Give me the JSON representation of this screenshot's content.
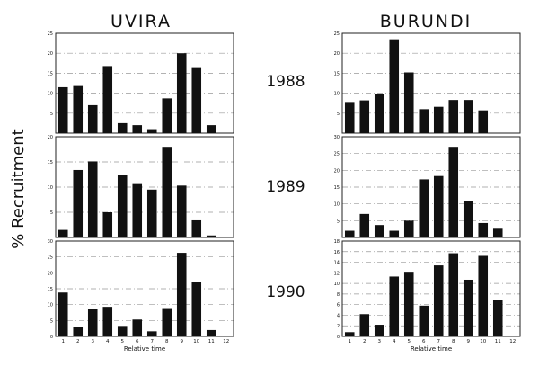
{
  "ylabel": "% Recruitment",
  "xlabel": "Relative time",
  "columns": [
    "UVIRA",
    "BURUNDI"
  ],
  "years": [
    "1988",
    "1989",
    "1990"
  ],
  "chart_data": [
    {
      "type": "bar",
      "column": "UVIRA",
      "year": "1988",
      "categories": [
        "1",
        "2",
        "3",
        "4",
        "5",
        "6",
        "7",
        "8",
        "9",
        "10",
        "11",
        "12"
      ],
      "values": [
        11.5,
        11.8,
        7,
        16.8,
        2.5,
        2,
        1,
        8.7,
        20,
        16.3,
        2,
        0
      ],
      "ylim": [
        0,
        25
      ],
      "yticks": [
        5,
        10,
        15,
        20,
        25
      ],
      "grid": true
    },
    {
      "type": "bar",
      "column": "BURUNDI",
      "year": "1988",
      "categories": [
        "1",
        "2",
        "3",
        "4",
        "5",
        "6",
        "7",
        "8",
        "9",
        "10",
        "11",
        "12"
      ],
      "values": [
        7.8,
        8.2,
        9.9,
        23.5,
        15.2,
        6,
        6.6,
        8.3,
        8.3,
        5.7,
        0,
        0
      ],
      "ylim": [
        0,
        25
      ],
      "yticks": [
        5,
        10,
        15,
        20,
        25
      ],
      "grid": true
    },
    {
      "type": "bar",
      "column": "UVIRA",
      "year": "1989",
      "categories": [
        "1",
        "2",
        "3",
        "4",
        "5",
        "6",
        "7",
        "8",
        "9",
        "10",
        "11",
        "12"
      ],
      "values": [
        1.5,
        13.4,
        15.1,
        5,
        12.5,
        10.6,
        9.5,
        18,
        10.3,
        3.4,
        0.4,
        0
      ],
      "ylim": [
        0,
        20
      ],
      "yticks": [
        5,
        10,
        15,
        20
      ],
      "grid": true
    },
    {
      "type": "bar",
      "column": "BURUNDI",
      "year": "1989",
      "categories": [
        "1",
        "2",
        "3",
        "4",
        "5",
        "6",
        "7",
        "8",
        "9",
        "10",
        "11",
        "12"
      ],
      "values": [
        2,
        7,
        3.7,
        2,
        5,
        17.3,
        18.3,
        27,
        10.8,
        4.3,
        2.6,
        0
      ],
      "ylim": [
        0,
        30
      ],
      "yticks": [
        5,
        10,
        15,
        20,
        25,
        30
      ],
      "grid": true
    },
    {
      "type": "bar",
      "column": "UVIRA",
      "year": "1990",
      "categories": [
        "1",
        "2",
        "3",
        "4",
        "5",
        "6",
        "7",
        "8",
        "9",
        "10",
        "11",
        "12"
      ],
      "values": [
        13.8,
        2.9,
        8.7,
        9.3,
        3.3,
        5.3,
        1.6,
        8.9,
        26.3,
        17.2,
        2,
        0
      ],
      "ylim": [
        0,
        30
      ],
      "yticks": [
        0,
        5,
        10,
        15,
        20,
        25,
        30
      ],
      "grid": true,
      "xlabel": "Relative time"
    },
    {
      "type": "bar",
      "column": "BURUNDI",
      "year": "1990",
      "categories": [
        "1",
        "2",
        "3",
        "4",
        "5",
        "6",
        "7",
        "8",
        "9",
        "10",
        "11",
        "12"
      ],
      "values": [
        0.8,
        4.2,
        2.2,
        11.3,
        12.2,
        5.8,
        13.4,
        15.7,
        10.7,
        15.2,
        6.8,
        0
      ],
      "ylim": [
        0,
        18
      ],
      "yticks": [
        0,
        2,
        4,
        6,
        8,
        10,
        12,
        14,
        16,
        18
      ],
      "grid": true,
      "xlabel": "Relative time"
    }
  ]
}
